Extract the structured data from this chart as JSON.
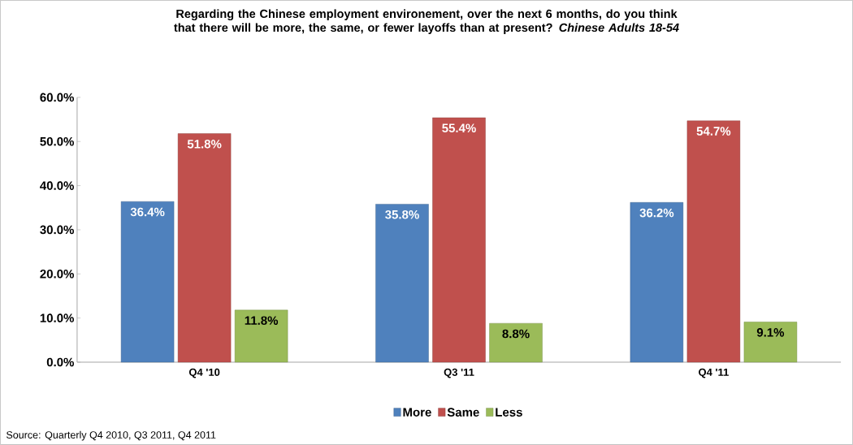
{
  "chart_data": {
    "type": "bar",
    "title": "Regarding the Chinese employment environement, over the next 6 months, do you think that there will be more, the same, or fewer layoffs than at present? *Chinese Adults 18-54*",
    "categories": [
      "Q4 '10",
      "Q3 '11",
      "Q4 '11"
    ],
    "series": [
      {
        "name": "More",
        "color": "#4f81bd",
        "values": [
          36.4,
          35.8,
          36.2
        ],
        "value_labels": [
          "36.4%",
          "35.8%",
          "36.2%"
        ]
      },
      {
        "name": "Same",
        "color": "#c0504d",
        "values": [
          51.8,
          55.4,
          54.7
        ],
        "value_labels": [
          "51.8%",
          "55.4%",
          "54.7%"
        ]
      },
      {
        "name": "Less",
        "color": "#9bbb59",
        "values": [
          11.8,
          8.8,
          9.1
        ],
        "value_labels": [
          "11.8%",
          "8.8%",
          "9.1%"
        ]
      }
    ],
    "ylim": [
      0,
      60
    ],
    "yticks": [
      {
        "value": 0,
        "label": "0.0%"
      },
      {
        "value": 10,
        "label": "10.0%"
      },
      {
        "value": 20,
        "label": "20.0%"
      },
      {
        "value": 30,
        "label": "30.0%"
      },
      {
        "value": 40,
        "label": "40.0%"
      },
      {
        "value": 50,
        "label": "50.0%"
      },
      {
        "value": 60,
        "label": "60.0%"
      }
    ],
    "legend": "bottom",
    "annotations": [
      "Source: Quarterly Q4 2010, Q3 2011, Q4 2011"
    ]
  }
}
